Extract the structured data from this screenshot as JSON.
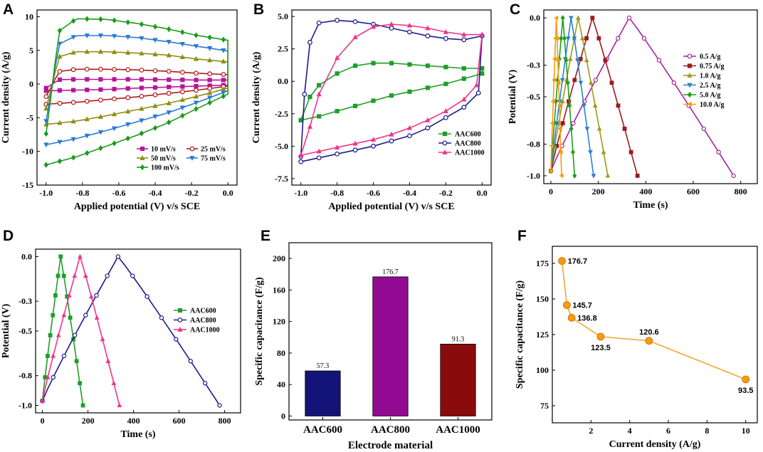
{
  "figure": {
    "panel_letters": [
      "A",
      "B",
      "C",
      "D",
      "E",
      "F"
    ]
  },
  "chart_data": [
    {
      "panel": "A",
      "type": "line",
      "title": "",
      "xlabel": "Applied potential (V) v/s SCE",
      "ylabel": "Current density (A/g)",
      "xlim": [
        -1.05,
        0.05
      ],
      "ylim": [
        -15,
        11
      ],
      "xticks": [
        -1.0,
        -0.8,
        -0.6,
        -0.4,
        -0.2,
        0.0
      ],
      "xtick_labels": [
        "-1.0",
        "-0.8",
        "-0.6",
        "-0.4",
        "-0.2",
        "0.0"
      ],
      "yticks": [
        -15,
        -10,
        -5,
        0,
        5,
        10
      ],
      "ytick_labels": [
        "-15",
        "-10",
        "-5",
        "0",
        "5",
        "10"
      ],
      "legend_position": "bottom-right",
      "legend_columns": 2,
      "series": [
        {
          "name": "10 mV/s",
          "color": "#b5169c",
          "marker": "square",
          "upper": [
            0.6,
            0.7,
            0.7,
            0.7,
            0.65,
            0.6,
            0.6
          ],
          "lower": [
            -1.0,
            -0.9,
            -0.8,
            -0.6,
            -0.45,
            -0.3,
            -0.15
          ]
        },
        {
          "name": "25 mV/s",
          "color": "#b21a1a",
          "marker": "circle",
          "upper": [
            1.6,
            2.2,
            2.2,
            2.1,
            1.9,
            1.6,
            1.4
          ],
          "lower": [
            -3.0,
            -2.7,
            -2.3,
            -1.9,
            -1.4,
            -0.9,
            -0.3
          ]
        },
        {
          "name": "50 mV/s",
          "color": "#8e8e12",
          "marker": "triangle",
          "upper": [
            3.5,
            4.8,
            4.8,
            4.6,
            4.3,
            3.7,
            3.3
          ],
          "lower": [
            -6.0,
            -5.5,
            -4.7,
            -3.8,
            -2.9,
            -1.8,
            -0.6
          ]
        },
        {
          "name": "75 mV/s",
          "color": "#2a7bd4",
          "marker": "triangle-down",
          "upper": [
            5.0,
            7.2,
            7.2,
            6.9,
            6.3,
            5.6,
            4.9
          ],
          "lower": [
            -9.0,
            -8.1,
            -6.9,
            -5.6,
            -4.3,
            -2.7,
            -1.0
          ]
        },
        {
          "name": "100 mV/s",
          "color": "#1c9a1c",
          "marker": "diamond",
          "upper": [
            6.5,
            9.7,
            9.6,
            9.0,
            8.2,
            7.2,
            6.5
          ],
          "lower": [
            -12.0,
            -10.8,
            -9.2,
            -7.6,
            -5.8,
            -3.6,
            -1.5
          ]
        }
      ]
    },
    {
      "panel": "B",
      "type": "line",
      "xlabel": "Applied potential (V) v/s SCE",
      "ylabel": "Current density (A/g)",
      "xlim": [
        -1.05,
        0.05
      ],
      "ylim": [
        -8,
        5.5
      ],
      "xticks": [
        -1.0,
        -0.8,
        -0.6,
        -0.4,
        -0.2,
        0.0
      ],
      "xtick_labels": [
        "-1.0",
        "-0.8",
        "-0.6",
        "-0.4",
        "-0.2",
        "0.0"
      ],
      "yticks": [
        -7.5,
        -5.0,
        -2.5,
        0.0,
        2.5,
        5.0
      ],
      "ytick_labels": [
        "-7.5",
        "-5.0",
        "-2.5",
        "0.0",
        "2.5",
        "5.0"
      ],
      "legend_position": "bottom-right",
      "series": [
        {
          "name": "AAC600",
          "color": "#1e9e2a",
          "marker": "square"
        },
        {
          "name": "AAC800",
          "color": "#1b1b8c",
          "marker": "circle"
        },
        {
          "name": "AAC1000",
          "color": "#f0338a",
          "marker": "triangle"
        }
      ]
    },
    {
      "panel": "C",
      "type": "line",
      "xlabel": "Time (s)",
      "ylabel": "Potential (V)",
      "xlim": [
        -30,
        870
      ],
      "ylim": [
        -1.05,
        0.05
      ],
      "xticks": [
        0,
        200,
        400,
        600,
        800
      ],
      "xtick_labels": [
        "0",
        "200",
        "400",
        "600",
        "800"
      ],
      "yticks": [
        0.0,
        -0.3,
        -0.5,
        -0.8,
        -1.0
      ],
      "ytick_labels": [
        "0.0",
        "-0.3",
        "-0.5",
        "-0.8",
        "-1.0"
      ],
      "legend_position": "right",
      "series": [
        {
          "name": "0.5 A/g",
          "color": "#a4259a",
          "marker": "circle",
          "t_peak": 330,
          "t_end": 770
        },
        {
          "name": "0.75 A/g",
          "color": "#9d1b1b",
          "marker": "square",
          "t_peak": 175,
          "t_end": 365
        },
        {
          "name": "1.0 A/g",
          "color": "#9c9c1a",
          "marker": "triangle",
          "t_peak": 115,
          "t_end": 240
        },
        {
          "name": "2.5 A/g",
          "color": "#2b7fcf",
          "marker": "triangle-down",
          "t_peak": 85,
          "t_end": 180
        },
        {
          "name": "5.0 A/g",
          "color": "#1aa01a",
          "marker": "diamond",
          "t_peak": 50,
          "t_end": 100
        },
        {
          "name": "10.0 A/g",
          "color": "#f39c12",
          "marker": "triangle-left",
          "t_peak": 23,
          "t_end": 45
        }
      ]
    },
    {
      "panel": "D",
      "type": "line",
      "xlabel": "Time (s)",
      "ylabel": "Potential (V)",
      "xlim": [
        -30,
        870
      ],
      "ylim": [
        -1.05,
        0.05
      ],
      "xticks": [
        0,
        200,
        400,
        600,
        800
      ],
      "xtick_labels": [
        "0",
        "200",
        "400",
        "600",
        "800"
      ],
      "yticks": [
        0.0,
        -0.3,
        -0.5,
        -0.8,
        -1.0
      ],
      "ytick_labels": [
        "0.0",
        "-0.3",
        "-0.5",
        "-0.8",
        "-1.0"
      ],
      "legend_position": "right",
      "series": [
        {
          "name": "AAC600",
          "color": "#1e9e2a",
          "marker": "square",
          "t_peak": 80,
          "t_end": 178
        },
        {
          "name": "AAC800",
          "color": "#1b1b8c",
          "marker": "circle",
          "t_peak": 332,
          "t_end": 778
        },
        {
          "name": "AAC1000",
          "color": "#f0338a",
          "marker": "triangle",
          "t_peak": 165,
          "t_end": 338
        }
      ]
    },
    {
      "panel": "E",
      "type": "bar",
      "xlabel": "Electrode material",
      "ylabel": "Specific capacitance (F/g)",
      "ylim": [
        -5,
        220
      ],
      "yticks": [
        0,
        40,
        80,
        120,
        160,
        200
      ],
      "ytick_labels": [
        "0",
        "40",
        "80",
        "120",
        "160",
        "200"
      ],
      "categories": [
        "AAC600",
        "AAC800",
        "AAC1000"
      ],
      "values": [
        57.3,
        176.7,
        91.3
      ],
      "value_labels": [
        "57.3",
        "176.7",
        "91.3"
      ],
      "colors": [
        "#141478",
        "#930b93",
        "#8a0b0b"
      ]
    },
    {
      "panel": "F",
      "type": "line",
      "xlabel": "Current density (A/g)",
      "ylabel": "Specific capacitance (F/g)",
      "xlim": [
        0,
        10.6
      ],
      "ylim": [
        63,
        187
      ],
      "xticks": [
        2,
        4,
        6,
        8,
        10
      ],
      "xtick_labels": [
        "2",
        "4",
        "6",
        "8",
        "10"
      ],
      "yticks": [
        75,
        100,
        125,
        150,
        175
      ],
      "ytick_labels": [
        "75",
        "100",
        "125",
        "150",
        "175"
      ],
      "color": "#f39c12",
      "x": [
        0.5,
        0.75,
        1.0,
        2.5,
        5.0,
        10.0
      ],
      "y": [
        176.7,
        145.7,
        136.8,
        123.5,
        120.6,
        93.5
      ],
      "point_labels": [
        "176.7",
        "145.7",
        "136.8",
        "123.5",
        "120.6",
        "93.5"
      ],
      "label_placement": [
        "right",
        "right",
        "right",
        "below",
        "above",
        "below"
      ]
    }
  ]
}
